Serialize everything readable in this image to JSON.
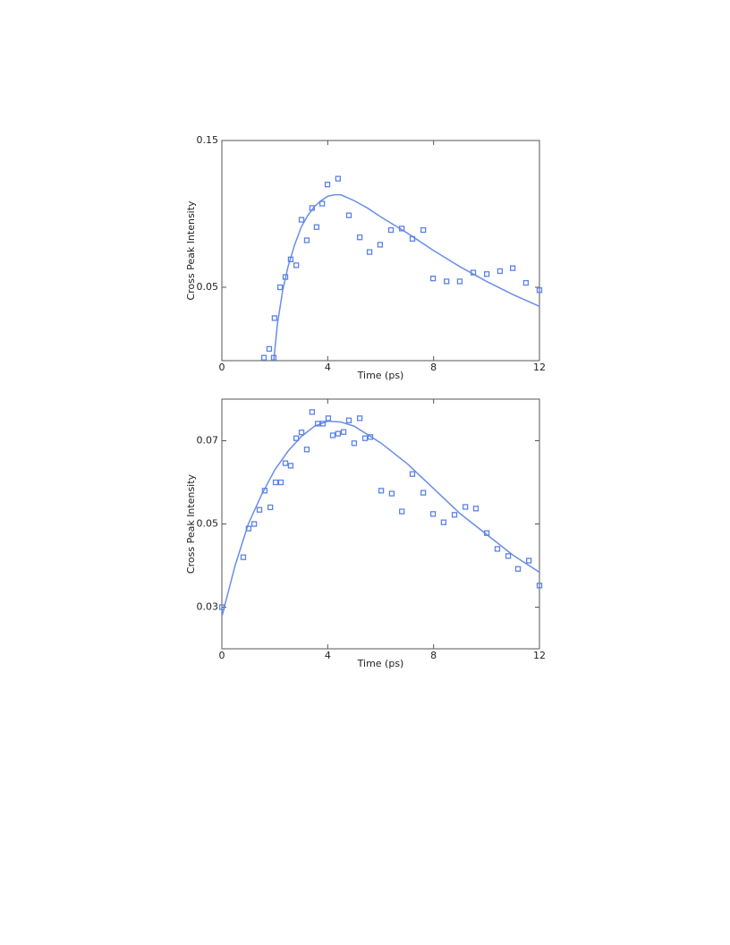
{
  "chart_data": [
    {
      "type": "scatter",
      "x_label": "Time (ps)",
      "y_label": "Cross Peak Intensity",
      "xlim": [
        0,
        12
      ],
      "xticks": [
        0,
        4,
        8,
        12
      ],
      "ylim": [
        0,
        0.15
      ],
      "yticks": [
        0.05,
        0.15
      ],
      "points": {
        "color": "#5b82e6",
        "x": [
          1.59,
          1.79,
          1.96,
          1.99,
          2.2,
          2.4,
          2.6,
          2.81,
          3.01,
          3.21,
          3.41,
          3.58,
          3.79,
          3.99,
          4.39,
          4.8,
          5.21,
          5.58,
          5.98,
          6.39,
          6.8,
          7.2,
          7.61,
          7.98,
          8.49,
          8.99,
          9.5,
          10.01,
          10.51,
          10.99,
          11.49,
          12.0
        ],
        "y": [
          0.002,
          0.008,
          0.002,
          0.029,
          0.05,
          0.057,
          0.069,
          0.065,
          0.096,
          0.082,
          0.104,
          0.091,
          0.107,
          0.12,
          0.124,
          0.099,
          0.084,
          0.074,
          0.079,
          0.089,
          0.09,
          0.083,
          0.089,
          0.056,
          0.054,
          0.054,
          0.06,
          0.059,
          0.061,
          0.063,
          0.053,
          0.048
        ]
      },
      "fit": {
        "color": "#6a8ee8",
        "x": [
          1.96,
          2.1,
          2.3,
          2.5,
          2.75,
          3,
          3.25,
          3.5,
          3.75,
          4,
          4.25,
          4.5,
          5,
          5.5,
          6,
          7,
          8,
          9,
          10,
          11,
          12
        ],
        "y": [
          0,
          0.025,
          0.048,
          0.064,
          0.079,
          0.091,
          0.099,
          0.105,
          0.109,
          0.112,
          0.113,
          0.113,
          0.109,
          0.104,
          0.098,
          0.087,
          0.075,
          0.064,
          0.054,
          0.045,
          0.037
        ]
      }
    },
    {
      "type": "scatter",
      "x_label": "Time (ps)",
      "y_label": "Cross Peak Intensity",
      "xlim": [
        0,
        12
      ],
      "xticks": [
        0,
        4,
        8,
        12
      ],
      "ylim": [
        0.02,
        0.08
      ],
      "yticks": [
        0.03,
        0.05,
        0.07
      ],
      "points": {
        "color": "#5b82e6",
        "x": [
          0,
          0.81,
          1.01,
          1.22,
          1.42,
          1.62,
          1.83,
          2.03,
          2.23,
          2.4,
          2.6,
          2.81,
          3.01,
          3.21,
          3.41,
          3.62,
          3.82,
          4.02,
          4.19,
          4.39,
          4.6,
          4.8,
          5.0,
          5.21,
          5.41,
          5.61,
          6.02,
          6.42,
          6.8,
          7.2,
          7.61,
          7.98,
          8.38,
          8.79,
          9.2,
          9.6,
          10.01,
          10.41,
          10.82,
          11.19,
          11.6,
          12.0
        ],
        "y": [
          0.03,
          0.042,
          0.0489,
          0.05,
          0.0534,
          0.058,
          0.054,
          0.06,
          0.06,
          0.0646,
          0.064,
          0.0706,
          0.072,
          0.0679,
          0.0769,
          0.0741,
          0.0741,
          0.0754,
          0.0713,
          0.0717,
          0.0721,
          0.0749,
          0.0694,
          0.0754,
          0.0706,
          0.0709,
          0.058,
          0.0573,
          0.053,
          0.062,
          0.0575,
          0.0524,
          0.0504,
          0.0522,
          0.0541,
          0.0537,
          0.0478,
          0.044,
          0.0423,
          0.0392,
          0.0412,
          0.0352
        ]
      },
      "fit": {
        "color": "#6a8ee8",
        "x": [
          0,
          0.5,
          1,
          1.5,
          2,
          2.5,
          3,
          3.5,
          4,
          4.5,
          5,
          6,
          7,
          8,
          9,
          10,
          11,
          12
        ],
        "y": [
          0.0277,
          0.04,
          0.05,
          0.057,
          0.063,
          0.0675,
          0.071,
          0.0735,
          0.0747,
          0.0745,
          0.0735,
          0.0695,
          0.0645,
          0.0585,
          0.0525,
          0.0475,
          0.0425,
          0.0384
        ]
      }
    }
  ]
}
